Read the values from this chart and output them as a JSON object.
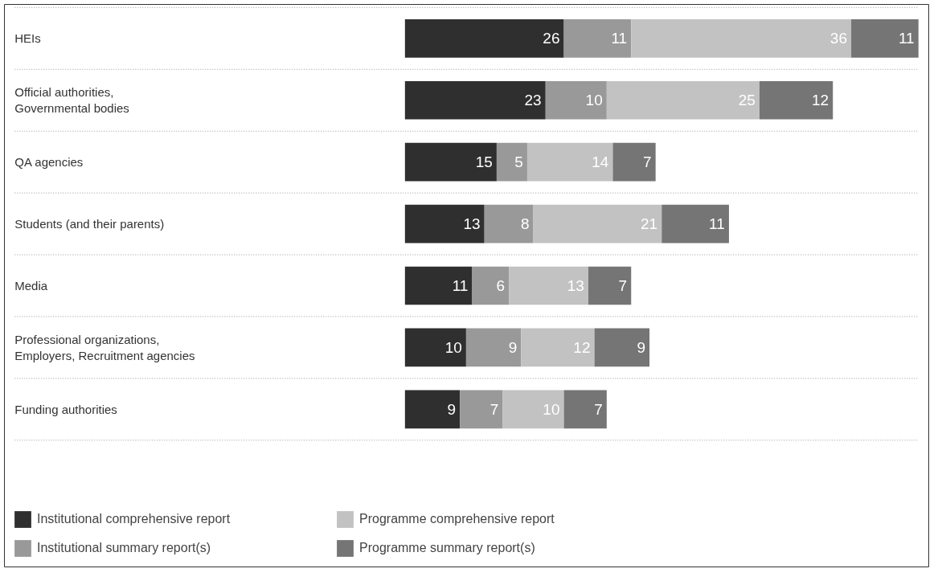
{
  "chart_data": {
    "type": "bar",
    "orientation": "horizontal",
    "stacked": true,
    "data_labels": true,
    "legend": "bottom",
    "grid": "y",
    "tick_labels": "y",
    "categories": [
      "HEIs",
      "Official authorities,\nGovernmental bodies",
      "QA agencies",
      "Students (and their parents)",
      "Media",
      "Professional organizations,\nEmployers, Recruitment agencies",
      "Funding authorities"
    ],
    "series": [
      {
        "name": "Institutional comprehensive report",
        "color": "#2f2f2f",
        "values": [
          26,
          23,
          15,
          13,
          11,
          10,
          9
        ]
      },
      {
        "name": "Institutional summary report(s)",
        "color": "#999999",
        "values": [
          11,
          10,
          5,
          8,
          6,
          9,
          7
        ]
      },
      {
        "name": "Programme comprehensive report",
        "color": "#c2c2c2",
        "values": [
          36,
          25,
          14,
          21,
          13,
          12,
          10
        ]
      },
      {
        "name": "Programme summary report(s)",
        "color": "#757575",
        "values": [
          11,
          12,
          7,
          11,
          7,
          9,
          7
        ]
      }
    ]
  }
}
